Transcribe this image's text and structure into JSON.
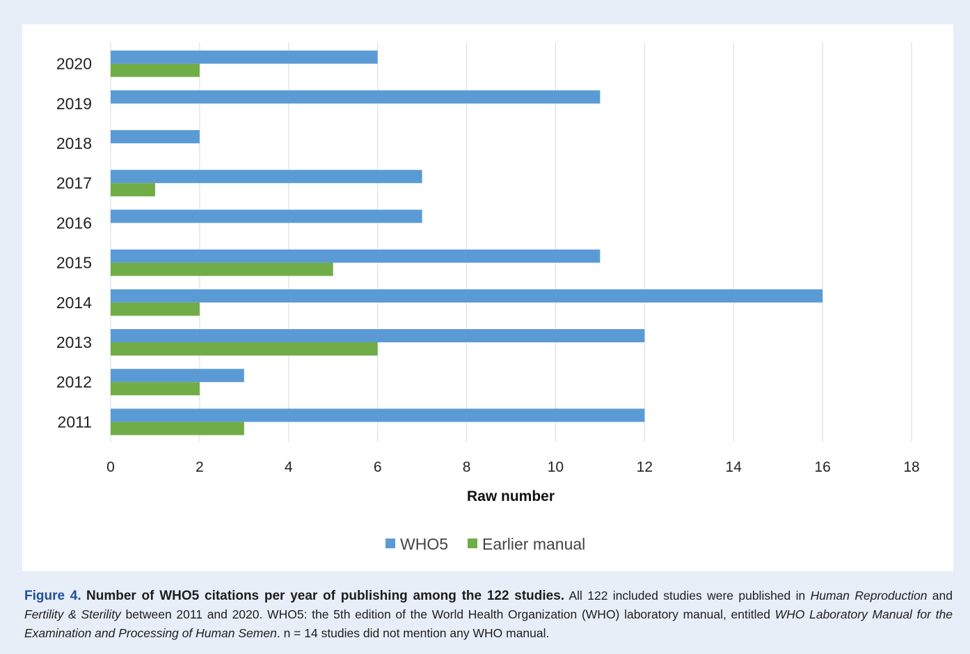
{
  "chart_data": {
    "type": "bar",
    "orientation": "horizontal",
    "categories": [
      "2020",
      "2019",
      "2018",
      "2017",
      "2016",
      "2015",
      "2014",
      "2013",
      "2012",
      "2011"
    ],
    "series": [
      {
        "name": "WHO5",
        "color": "#5b9bd5",
        "values": [
          6,
          11,
          2,
          7,
          7,
          11,
          16,
          12,
          3,
          12
        ]
      },
      {
        "name": "Earlier manual",
        "color": "#70ad47",
        "values": [
          2,
          0,
          0,
          1,
          0,
          5,
          2,
          6,
          2,
          3
        ]
      }
    ],
    "xlabel": "Raw number",
    "xlim": [
      0,
      18
    ],
    "xticks": [
      "0",
      "2",
      "4",
      "6",
      "8",
      "10",
      "12",
      "14",
      "16",
      "18"
    ],
    "grid": "vertical",
    "legend_position": "bottom"
  },
  "caption": {
    "label": "Figure 4.",
    "title": "Number of WHO5 citations per year of publishing among the 122 studies.",
    "seg1": "All 122 included studies were published in",
    "journal1": "Human Reproduction",
    "seg2": "and",
    "journal2": "Fertility & Sterility",
    "seg3": "between 2011 and 2020. WHO5: the 5th edition of the World Health Organization (WHO) laboratory manual, entitled",
    "manual_title": "WHO Laboratory Manual for the Examination and Processing of Human Semen",
    "seg4": ". n = 14 studies did not mention any WHO manual."
  }
}
